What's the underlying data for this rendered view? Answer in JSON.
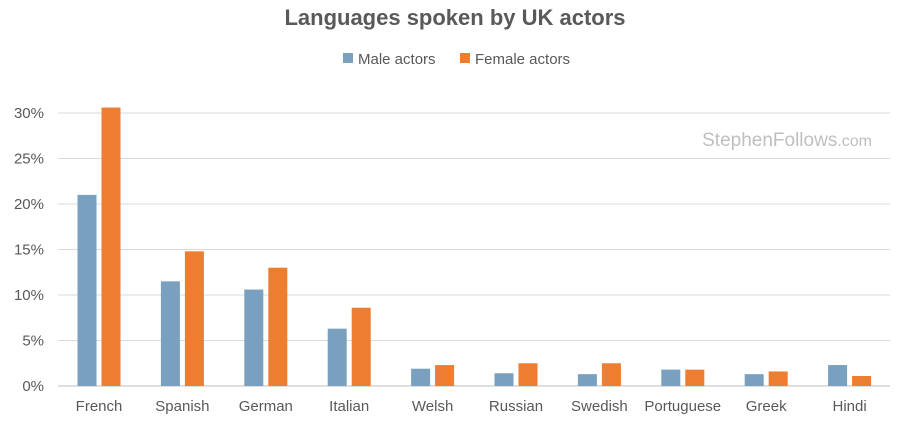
{
  "chart_data": {
    "type": "bar",
    "title": "Languages spoken by UK actors",
    "xlabel": "",
    "ylabel": "",
    "categories": [
      "French",
      "Spanish",
      "German",
      "Italian",
      "Welsh",
      "Russian",
      "Swedish",
      "Portuguese",
      "Greek",
      "Hindi"
    ],
    "series": [
      {
        "name": "Male actors",
        "color": "#7aa0bf",
        "values": [
          21.0,
          11.5,
          10.6,
          6.3,
          1.9,
          1.4,
          1.3,
          1.8,
          1.3,
          2.3
        ]
      },
      {
        "name": "Female actors",
        "color": "#ed7d31",
        "values": [
          30.6,
          14.8,
          13.0,
          8.6,
          2.3,
          2.5,
          2.5,
          1.8,
          1.6,
          1.1
        ]
      }
    ],
    "ylim": [
      0,
      30
    ],
    "yticks": [
      0,
      5,
      10,
      15,
      20,
      25,
      30
    ],
    "ytick_labels": [
      "0%",
      "5%",
      "10%",
      "15%",
      "20%",
      "25%",
      "30%"
    ],
    "grid": true,
    "legend_position": "top-center"
  },
  "watermark": {
    "main": "StephenFollows",
    "suffix": ".com"
  }
}
